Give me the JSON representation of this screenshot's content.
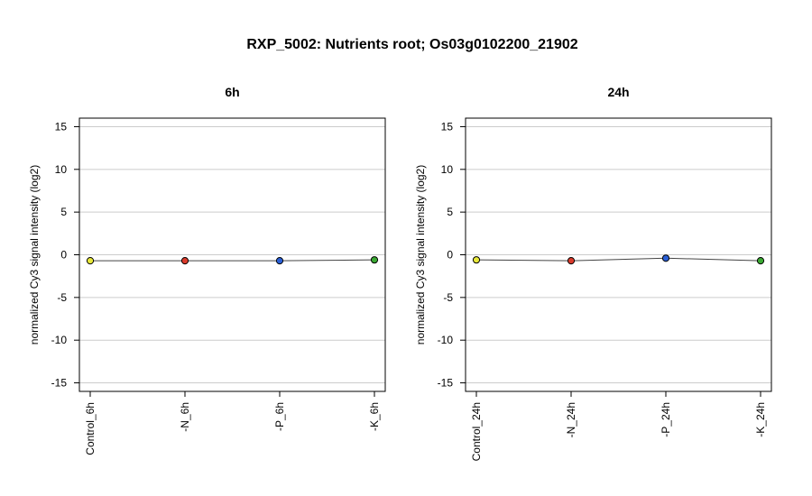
{
  "title": "RXP_5002: Nutrients root; Os03g0102200_21902",
  "chart_data": [
    {
      "type": "line",
      "title": "6h",
      "ylabel": "normalized Cy3 signal intensity (log2)",
      "ylim": [
        -16,
        16
      ],
      "yticks": [
        "-15",
        "-10",
        "-5",
        "0",
        "5",
        "10",
        "15"
      ],
      "grid": true,
      "categories": [
        "Control_6h",
        "-N_6h",
        "-P_6h",
        "-K_6h"
      ],
      "values": [
        -0.7,
        -0.7,
        -0.7,
        -0.6
      ],
      "point_colors": [
        "#e8e83a",
        "#d93a2b",
        "#2a5fd6",
        "#3aa832"
      ]
    },
    {
      "type": "line",
      "title": "24h",
      "ylabel": "normalized Cy3 signal intensity (log2)",
      "ylim": [
        -16,
        16
      ],
      "yticks": [
        "-15",
        "-10",
        "-5",
        "0",
        "5",
        "10",
        "15"
      ],
      "grid": true,
      "categories": [
        "Control_24h",
        "-N_24h",
        "-P_24h",
        "-K_24h"
      ],
      "values": [
        -0.6,
        -0.7,
        -0.4,
        -0.7
      ],
      "point_colors": [
        "#e8e83a",
        "#d93a2b",
        "#2a5fd6",
        "#3aa832"
      ]
    }
  ]
}
